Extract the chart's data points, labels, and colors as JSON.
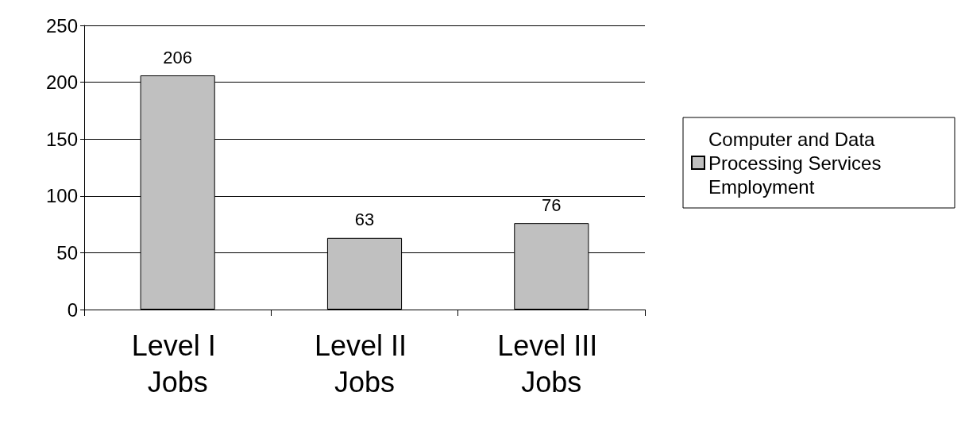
{
  "chart_data": {
    "type": "bar",
    "categories": [
      "Level I Jobs",
      "Level II Jobs",
      "Level III Jobs"
    ],
    "series": [
      {
        "name": "Computer and Data Processing Services Employment",
        "color": "#c0c0c0",
        "values": [
          206,
          63,
          76
        ]
      }
    ],
    "ylim": [
      0,
      250
    ],
    "yticks": [
      0,
      50,
      100,
      150,
      200,
      250
    ],
    "grid": "y",
    "legend": "right",
    "data_labels": true
  }
}
